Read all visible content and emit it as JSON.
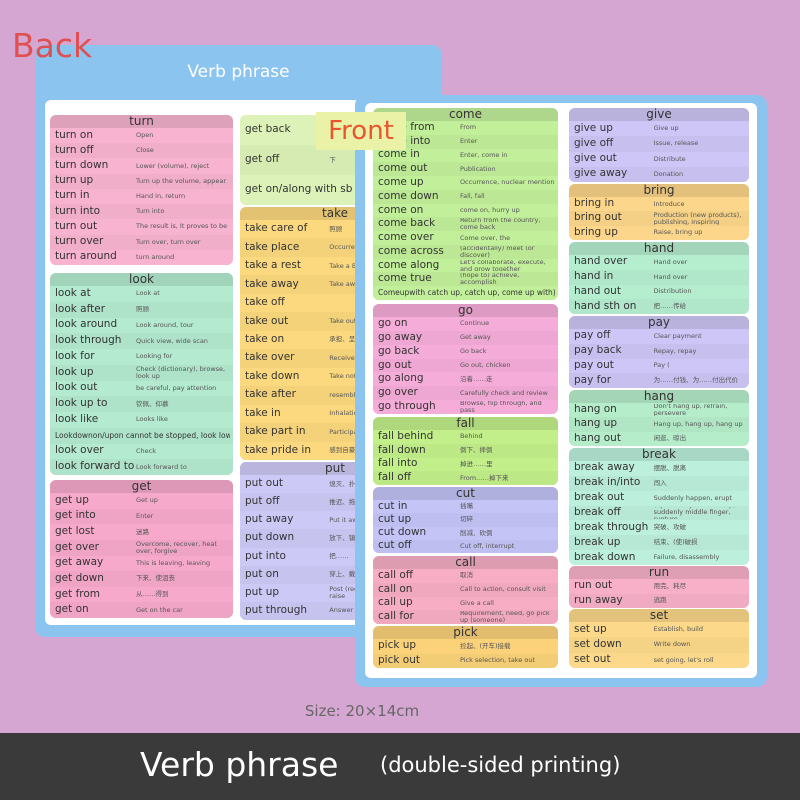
{
  "labels": {
    "back": "Back",
    "front": "Front",
    "card_title": "Verb phrase",
    "size": "Size: 20×14cm",
    "banner_title": "Verb phrase",
    "banner_note": "(double-sided printing)"
  },
  "back": {
    "sections": [
      {
        "title": "turn",
        "color": "#f7b3cf",
        "rows": [
          [
            "turn on",
            "Open"
          ],
          [
            "turn off",
            "Close"
          ],
          [
            "turn down",
            "Lower (volume), reject"
          ],
          [
            "turn up",
            "Turn up the volume, appear"
          ],
          [
            "turn in",
            "Hand in, return"
          ],
          [
            "turn into",
            "Turn into"
          ],
          [
            "turn out",
            "The result is, It proves to be"
          ],
          [
            "turn over",
            "Turn over, turn over"
          ],
          [
            "turn around",
            "turn around"
          ]
        ]
      },
      {
        "title": "look",
        "color": "#b3ead0",
        "rows": [
          [
            "look at",
            "Look at"
          ],
          [
            "look after",
            "照顾"
          ],
          [
            "look around",
            "Look around, tour"
          ],
          [
            "look through",
            "Quick view, wide scan"
          ],
          [
            "look for",
            "Looking for"
          ],
          [
            "look up",
            "Check (dictionary), browse, look up"
          ],
          [
            "look out",
            "be careful, pay attention"
          ],
          [
            "look up to",
            "钦佩、仰慕"
          ],
          [
            "look like",
            "Looks like"
          ],
          [
            "Lookdownon/upon cannot be stopped, look low"
          ],
          [
            "look over",
            "Check"
          ],
          [
            "look forward to",
            "Look forward to"
          ]
        ]
      },
      {
        "title": "get",
        "color": "#f7a9cb",
        "rows": [
          [
            "get up",
            "Get up"
          ],
          [
            "get into",
            "Enter"
          ],
          [
            "get lost",
            "迷路"
          ],
          [
            "get over",
            "Overcome, recover, heat over, forgive"
          ],
          [
            "get away",
            "This is leaving, leaving"
          ],
          [
            "get down",
            "下来、使沮丧"
          ],
          [
            "get from",
            "从……得到"
          ],
          [
            "get on",
            "Get on the car"
          ]
        ]
      },
      {
        "color": "#dcf2b8",
        "rows": [
          [
            "get back"
          ],
          [
            "get off",
            "下"
          ],
          [
            "get on/along with sb"
          ]
        ]
      },
      {
        "title": "take",
        "color": "#fcd97e",
        "rows": [
          [
            "take care of",
            "照顾"
          ],
          [
            "take place",
            "Occurrence (uncovered)"
          ],
          [
            "take a rest",
            "Take a Break"
          ],
          [
            "take away",
            "Take away, take"
          ],
          [
            "take off"
          ],
          [
            "take out",
            "Take out, take out"
          ],
          [
            "take on",
            "承担、呈现"
          ],
          [
            "take over",
            "Receive, take over"
          ],
          [
            "take down",
            "Take notes, remove"
          ],
          [
            "take after",
            "resemble"
          ],
          [
            "take in",
            "Inhalation, spring"
          ],
          [
            "take part in",
            "Participate, participate"
          ],
          [
            "take pride in",
            "感到自豪 (=be proud)"
          ]
        ]
      },
      {
        "title": "put",
        "color": "#cdc9f6",
        "rows": [
          [
            "put out",
            "熄灭、扑"
          ],
          [
            "put off",
            "推迟、拖"
          ],
          [
            "put away",
            "Put it away, clean it"
          ],
          [
            "put down",
            "放下、镇压"
          ],
          [
            "put into",
            "把……"
          ],
          [
            "put on",
            "穿上、戴上"
          ],
          [
            "put up",
            "Post (reconstruction), Build, raise"
          ],
          [
            "put through",
            "Answer the call"
          ]
        ]
      }
    ]
  },
  "front": {
    "sections": [
      {
        "title": "come",
        "color": "#c2ef9a",
        "rows": [
          [
            "come from",
            "From"
          ],
          [
            "come into",
            "Enter"
          ],
          [
            "come in",
            "Enter, come in"
          ],
          [
            "come out",
            "Publication"
          ],
          [
            "come up",
            "Occurrence, nuclear mention"
          ],
          [
            "come down",
            "Fall, fall"
          ],
          [
            "come on",
            "come on, hurry up"
          ],
          [
            "come back",
            "Return from the country, come back"
          ],
          [
            "come over",
            "Come over, the"
          ],
          [
            "come across",
            "(accidentally) meet (or discover)"
          ],
          [
            "come along",
            "Let's collaborate, execute, and grow together"
          ],
          [
            "come true",
            "(hope to) achieve, accomplish"
          ],
          [
            "Comeupwith catch up, catch up, come up with), propose"
          ]
        ]
      },
      {
        "title": "go",
        "color": "#f5acd9",
        "rows": [
          [
            "go on",
            "Continue"
          ],
          [
            "go away",
            "Get away"
          ],
          [
            "go back",
            "Go back"
          ],
          [
            "go out",
            "Go out, chicken"
          ],
          [
            "go along",
            "沿着……走"
          ],
          [
            "go over",
            "Carefully check and review"
          ],
          [
            "go through",
            "Browse, flip through, and pass"
          ]
        ]
      },
      {
        "title": "fall",
        "color": "#c2ef8a",
        "rows": [
          [
            "fall behind",
            "Behind"
          ],
          [
            "fall down",
            "倒下、摔倒"
          ],
          [
            "fall into",
            "掉进……里"
          ],
          [
            "fall off",
            "From……掉下来"
          ]
        ]
      },
      {
        "title": "cut",
        "color": "#c4c4f7",
        "rows": [
          [
            "cut in",
            "插嘴"
          ],
          [
            "cut up",
            "切碎"
          ],
          [
            "cut down",
            "削减、砍倒"
          ],
          [
            "cut off",
            "Cut off, interrupt"
          ]
        ]
      },
      {
        "title": "call",
        "color": "#f7adc4",
        "rows": [
          [
            "call off",
            "取消"
          ],
          [
            "call on",
            "Call to action, consult visit"
          ],
          [
            "call up",
            "Give a call"
          ],
          [
            "call for",
            "Requirement, need, go pick up (someone)"
          ]
        ]
      },
      {
        "title": "pick",
        "color": "#fbd27a",
        "rows": [
          [
            "pick up",
            "捡起、(开车)接载"
          ],
          [
            "pick out",
            "Pick selection, take out"
          ]
        ]
      },
      {
        "title": "give",
        "color": "#cdc6f6",
        "rows": [
          [
            "give up",
            "Give up"
          ],
          [
            "give off",
            "Issue, release"
          ],
          [
            "give out",
            "Distribute"
          ],
          [
            "give away",
            "Donation"
          ]
        ]
      },
      {
        "title": "bring",
        "color": "#fcd68a",
        "rows": [
          [
            "bring in",
            "Introduce"
          ],
          [
            "bring out",
            "Production (new products), publishing, inspiring"
          ],
          [
            "bring up",
            "Raise, bring up"
          ]
        ]
      },
      {
        "title": "hand",
        "color": "#b5edcf",
        "rows": [
          [
            "hand over",
            "Hand over"
          ],
          [
            "hand in",
            "Hand over"
          ],
          [
            "hand out",
            "Distribution"
          ],
          [
            "hand sth on",
            "把……传给"
          ]
        ]
      },
      {
        "title": "pay",
        "color": "#cdc6f6",
        "rows": [
          [
            "pay off",
            "Clear payment"
          ],
          [
            "pay back",
            "Repay, repay"
          ],
          [
            "pay out",
            "Pay ("
          ],
          [
            "pay for",
            "为……付钱、为……付出代价"
          ]
        ]
      },
      {
        "title": "hang",
        "color": "#b5edca",
        "rows": [
          [
            "hang on",
            "Don't hang up, refrain, persevere"
          ],
          [
            "hang up",
            "Hang up, hang up, hang up"
          ],
          [
            "hang out",
            "闲逛、晾出"
          ]
        ]
      },
      {
        "title": "break",
        "color": "#bcefdc",
        "rows": [
          [
            "break away",
            "摆脱、脱离"
          ],
          [
            "break in/into",
            "闯入"
          ],
          [
            "break out",
            "Suddenly happen, erupt"
          ],
          [
            "break off",
            "(Specifically relationship) suddenly middle finger, rupture"
          ],
          [
            "break through",
            "突破、攻破"
          ],
          [
            "break up",
            "结束、(使)破损"
          ],
          [
            "break down",
            "Failure, disassembly"
          ]
        ]
      },
      {
        "title": "run",
        "color": "#f7b0c8",
        "rows": [
          [
            "run out",
            "用完、耗尽"
          ],
          [
            "run away",
            "逃跑"
          ]
        ]
      },
      {
        "title": "set",
        "color": "#fcd98a",
        "rows": [
          [
            "set up",
            "Establish, build"
          ],
          [
            "set down",
            "Write down"
          ],
          [
            "set out",
            "set going, let's roll"
          ]
        ]
      }
    ]
  }
}
